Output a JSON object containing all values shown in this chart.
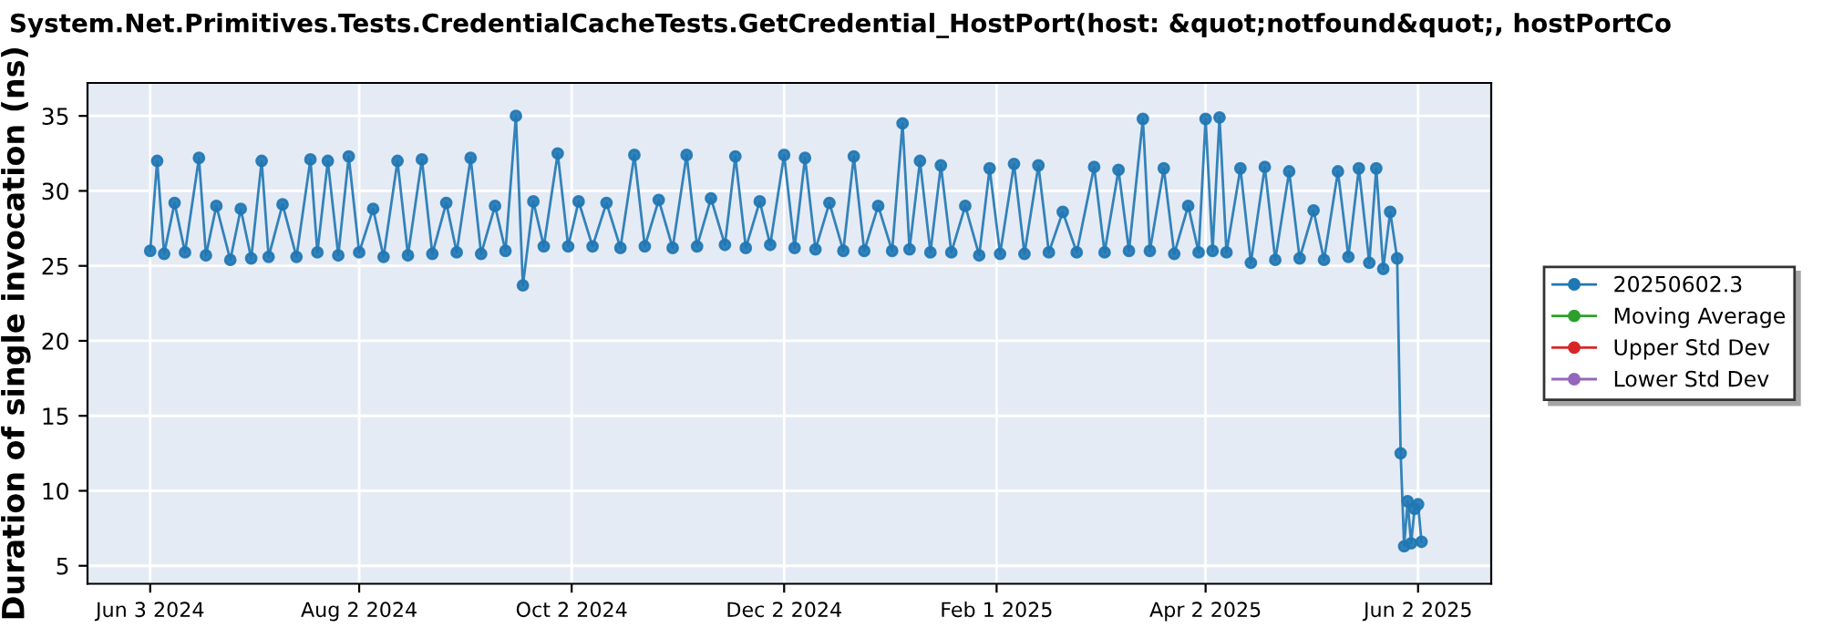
{
  "chart_data": {
    "type": "line",
    "title": "System.Net.Primitives.Tests.CredentialCacheTests.GetCredential_HostPort(host: &quot;notfound&quot;, hostPortCo",
    "ylabel": "Duration of single invocation (ns)",
    "xlim": [
      "2024-05-16",
      "2025-06-23"
    ],
    "xticks": [
      {
        "value": "2024-06-03",
        "label": "Jun 3 2024"
      },
      {
        "value": "2024-08-02",
        "label": "Aug 2 2024"
      },
      {
        "value": "2024-10-02",
        "label": "Oct 2 2024"
      },
      {
        "value": "2024-12-02",
        "label": "Dec 2 2024"
      },
      {
        "value": "2025-02-01",
        "label": "Feb 1 2025"
      },
      {
        "value": "2025-04-02",
        "label": "Apr 2 2025"
      },
      {
        "value": "2025-06-02",
        "label": "Jun 2 2025"
      }
    ],
    "ylim": [
      3.8,
      37.2
    ],
    "yticks": [
      5,
      10,
      15,
      20,
      25,
      30,
      35
    ],
    "grid": true,
    "legend": "right",
    "marker": "circle",
    "line_style": "solid",
    "series": [
      {
        "name": "20250602.3",
        "color": "#1f77b4",
        "x": [
          "2024-06-03",
          "2024-06-05",
          "2024-06-07",
          "2024-06-10",
          "2024-06-13",
          "2024-06-17",
          "2024-06-19",
          "2024-06-22",
          "2024-06-26",
          "2024-06-29",
          "2024-07-02",
          "2024-07-05",
          "2024-07-07",
          "2024-07-11",
          "2024-07-15",
          "2024-07-19",
          "2024-07-21",
          "2024-07-24",
          "2024-07-27",
          "2024-07-30",
          "2024-08-02",
          "2024-08-06",
          "2024-08-09",
          "2024-08-13",
          "2024-08-16",
          "2024-08-20",
          "2024-08-23",
          "2024-08-27",
          "2024-08-30",
          "2024-09-03",
          "2024-09-06",
          "2024-09-10",
          "2024-09-13",
          "2024-09-16",
          "2024-09-18",
          "2024-09-21",
          "2024-09-24",
          "2024-09-28",
          "2024-10-01",
          "2024-10-04",
          "2024-10-08",
          "2024-10-12",
          "2024-10-16",
          "2024-10-20",
          "2024-10-23",
          "2024-10-27",
          "2024-10-31",
          "2024-11-04",
          "2024-11-07",
          "2024-11-11",
          "2024-11-15",
          "2024-11-18",
          "2024-11-21",
          "2024-11-25",
          "2024-11-28",
          "2024-12-02",
          "2024-12-05",
          "2024-12-08",
          "2024-12-11",
          "2024-12-15",
          "2024-12-19",
          "2024-12-22",
          "2024-12-25",
          "2024-12-29",
          "2025-01-02",
          "2025-01-05",
          "2025-01-07",
          "2025-01-10",
          "2025-01-13",
          "2025-01-16",
          "2025-01-19",
          "2025-01-23",
          "2025-01-27",
          "2025-01-30",
          "2025-02-02",
          "2025-02-06",
          "2025-02-09",
          "2025-02-13",
          "2025-02-16",
          "2025-02-20",
          "2025-02-24",
          "2025-03-01",
          "2025-03-04",
          "2025-03-08",
          "2025-03-11",
          "2025-03-15",
          "2025-03-17",
          "2025-03-21",
          "2025-03-24",
          "2025-03-28",
          "2025-03-31",
          "2025-04-02",
          "2025-04-04",
          "2025-04-06",
          "2025-04-08",
          "2025-04-12",
          "2025-04-15",
          "2025-04-19",
          "2025-04-22",
          "2025-04-26",
          "2025-04-29",
          "2025-05-03",
          "2025-05-06",
          "2025-05-10",
          "2025-05-13",
          "2025-05-16",
          "2025-05-19",
          "2025-05-21",
          "2025-05-23",
          "2025-05-25",
          "2025-05-27",
          "2025-05-28",
          "2025-05-29",
          "2025-05-30",
          "2025-05-31",
          "2025-06-01",
          "2025-06-02",
          "2025-06-03"
        ],
        "values": [
          26.0,
          32.0,
          25.8,
          29.2,
          25.9,
          32.2,
          25.7,
          29.0,
          25.4,
          28.8,
          25.5,
          32.0,
          25.6,
          29.1,
          25.6,
          32.1,
          25.9,
          32.0,
          25.7,
          32.3,
          25.9,
          28.8,
          25.6,
          32.0,
          25.7,
          32.1,
          25.8,
          29.2,
          25.9,
          32.2,
          25.8,
          29.0,
          26.0,
          35.0,
          23.7,
          29.3,
          26.3,
          32.5,
          26.3,
          29.3,
          26.3,
          29.2,
          26.2,
          32.4,
          26.3,
          29.4,
          26.2,
          32.4,
          26.3,
          29.5,
          26.4,
          32.3,
          26.2,
          29.3,
          26.4,
          32.4,
          26.2,
          32.2,
          26.1,
          29.2,
          26.0,
          32.3,
          26.0,
          29.0,
          26.0,
          34.5,
          26.1,
          32.0,
          25.9,
          31.7,
          25.9,
          29.0,
          25.7,
          31.5,
          25.8,
          31.8,
          25.8,
          31.7,
          25.9,
          28.6,
          25.9,
          31.6,
          25.9,
          31.4,
          26.0,
          34.8,
          26.0,
          31.5,
          25.8,
          29.0,
          25.9,
          34.8,
          26.0,
          34.9,
          25.9,
          31.5,
          25.2,
          31.6,
          25.4,
          31.3,
          25.5,
          28.7,
          25.4,
          31.3,
          25.6,
          31.5,
          25.2,
          31.5,
          24.8,
          28.6,
          25.5,
          12.5,
          6.3,
          9.3,
          6.5,
          8.8,
          9.1,
          6.6
        ]
      },
      {
        "name": "Moving Average",
        "color": "#2ca02c"
      },
      {
        "name": "Upper Std Dev",
        "color": "#d62728"
      },
      {
        "name": "Lower Std Dev",
        "color": "#9467bd"
      }
    ]
  }
}
